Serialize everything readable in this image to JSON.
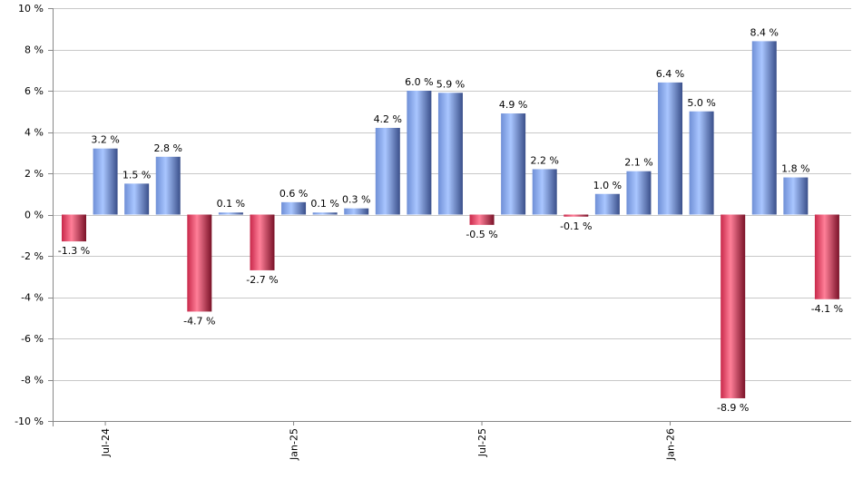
{
  "chart_data": {
    "type": "bar",
    "title": "",
    "xlabel": "",
    "ylabel": "",
    "ylim": [
      -10,
      10
    ],
    "y_ticks": [
      10,
      8,
      6,
      4,
      2,
      0,
      -2,
      -4,
      -6,
      -8,
      -10
    ],
    "y_tick_labels": [
      "10 %",
      "8 %",
      "6 %",
      "4 %",
      "2 %",
      "0 %",
      "-2 %",
      "-4 %",
      "-6 %",
      "-8 %",
      "-10 %"
    ],
    "x_tick_labels": [
      {
        "label": "Jul-24",
        "index": 1
      },
      {
        "label": "Jan-25",
        "index": 7
      },
      {
        "label": "Jul-25",
        "index": 13
      },
      {
        "label": "Jan-26",
        "index": 19
      }
    ],
    "values": [
      -1.3,
      3.2,
      1.5,
      2.8,
      -4.7,
      0.1,
      -2.7,
      0.6,
      0.1,
      0.3,
      4.2,
      6.0,
      5.9,
      -0.5,
      4.9,
      2.2,
      -0.1,
      1.0,
      2.1,
      6.4,
      5.0,
      -8.9,
      8.4,
      1.8,
      -4.1
    ],
    "value_labels": [
      "-1.3 %",
      "3.2 %",
      "1.5 %",
      "2.8 %",
      "-4.7 %",
      "0.1 %",
      "-2.7 %",
      "0.6 %",
      "0.1 %",
      "0.3 %",
      "4.2 %",
      "6.0 %",
      "5.9 %",
      "-0.5 %",
      "4.9 %",
      "2.2 %",
      "-0.1 %",
      "1.0 %",
      "2.1 %",
      "6.4 %",
      "5.0 %",
      "-8.9 %",
      "8.4 %",
      "1.8 %",
      "-4.1 %"
    ],
    "grid": true,
    "colors": {
      "positive_light": "#a9c6ff",
      "positive_mid": "#6f8fd6",
      "positive_dark": "#3a4f8a",
      "negative_light": "#ff7f98",
      "negative_mid": "#c8284a",
      "negative_dark": "#7a1228",
      "grid": "#c8c8c8",
      "axis": "#888888"
    }
  }
}
